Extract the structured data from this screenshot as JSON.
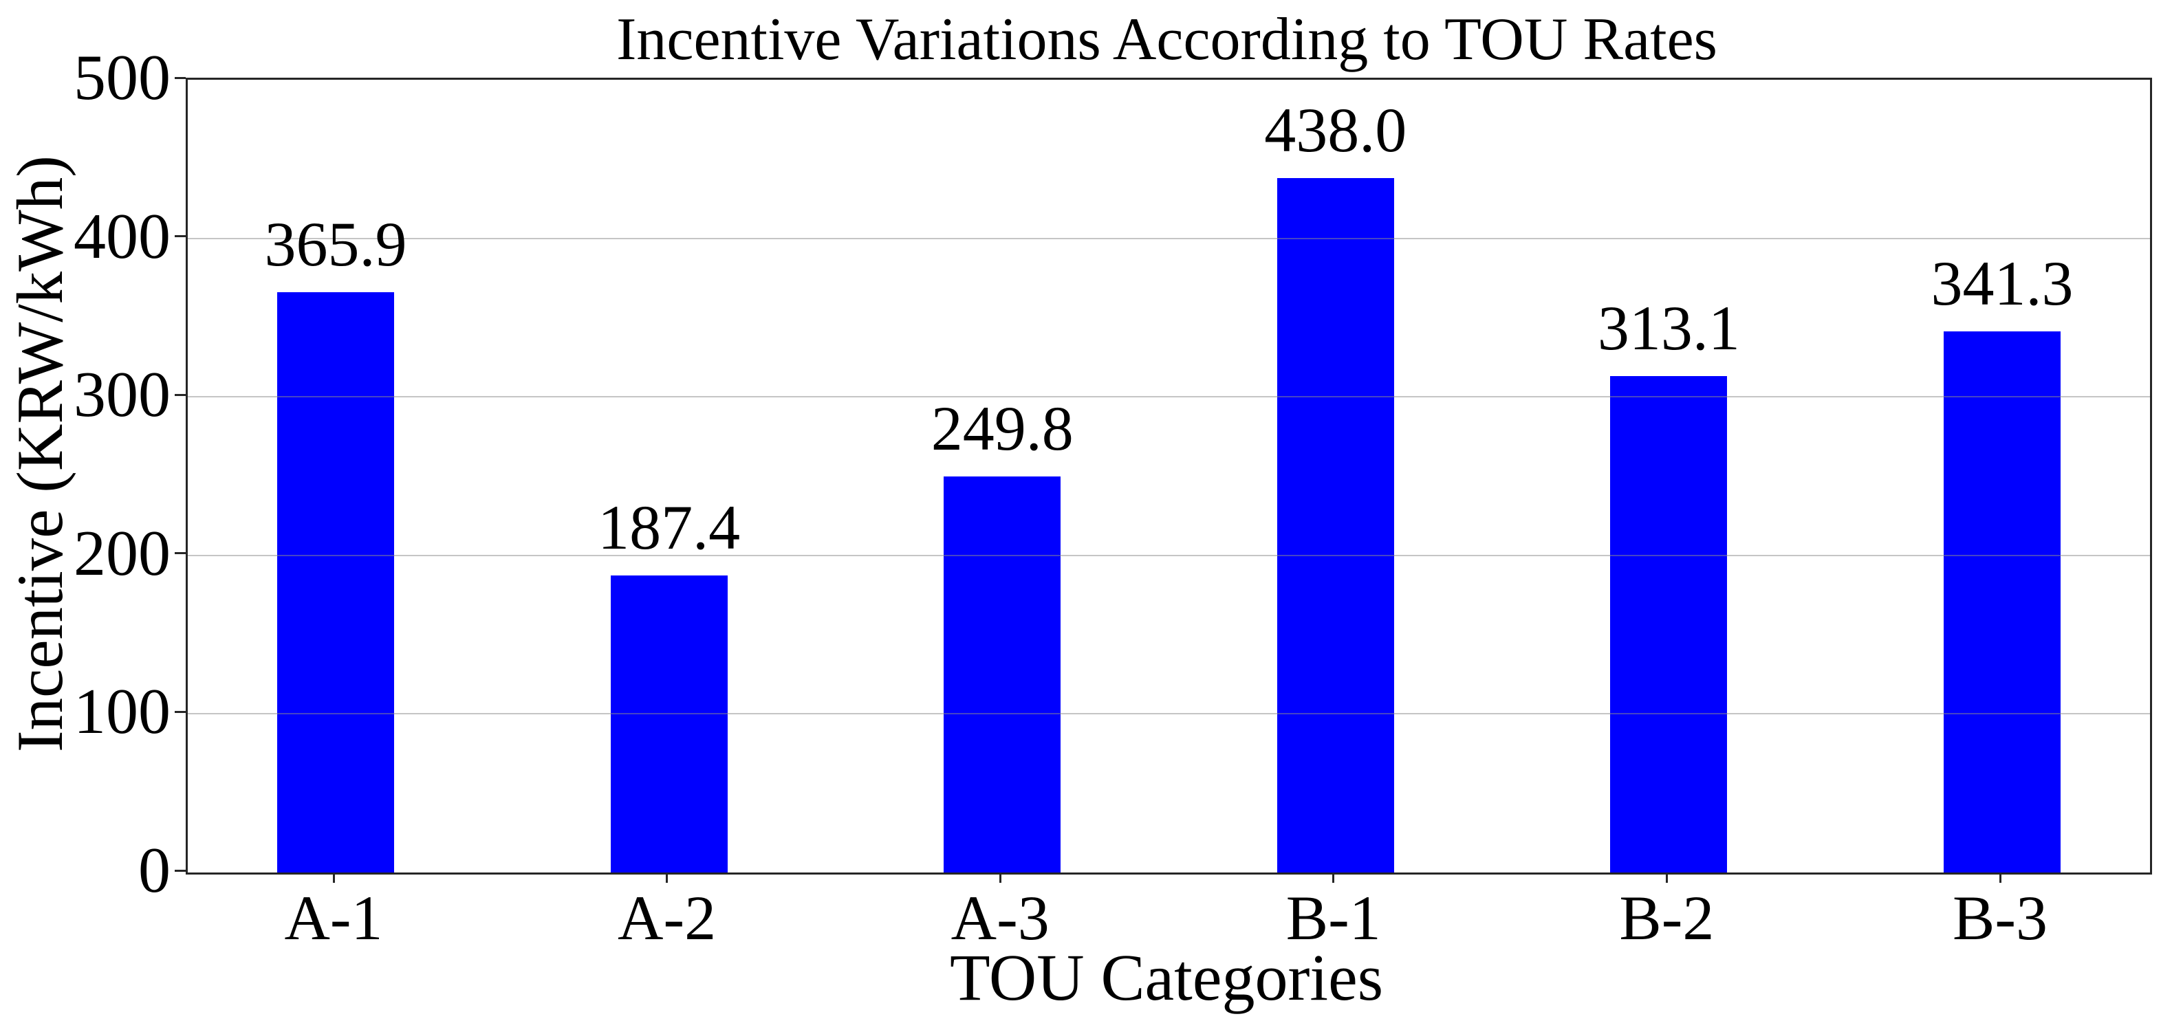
{
  "chart_data": {
    "type": "bar",
    "title": "Incentive Variations According to TOU Rates",
    "xlabel": "TOU Categories",
    "ylabel": "Incentive (KRW/kWh)",
    "categories": [
      "A-1",
      "A-2",
      "A-3",
      "B-1",
      "B-2",
      "B-3"
    ],
    "values": [
      365.9,
      187.4,
      249.8,
      438.0,
      313.1,
      341.3
    ],
    "value_labels": [
      "365.9",
      "187.4",
      "249.8",
      "438.0",
      "313.1",
      "341.3"
    ],
    "ylim": [
      0,
      500
    ],
    "yticks": [
      0,
      100,
      200,
      300,
      400,
      500
    ],
    "grid": true,
    "legend_position": "none",
    "colors": {
      "bar": "#0000ff",
      "gridline": "rgba(140,140,140,0.5)",
      "spine": "#262626",
      "text": "#000000",
      "background": "#ffffff"
    }
  }
}
